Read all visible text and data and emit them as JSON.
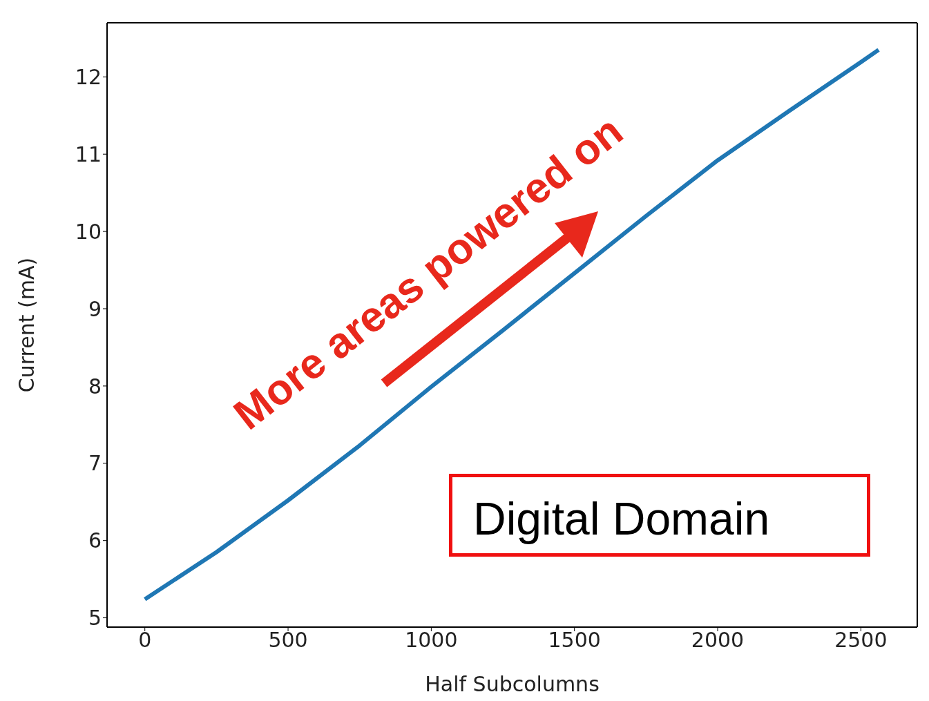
{
  "chart_data": {
    "type": "line",
    "xlabel": "Half Subcolumns",
    "ylabel": "Current (mA)",
    "x": [
      0,
      250,
      500,
      750,
      1000,
      1250,
      1500,
      1750,
      2000,
      2250,
      2500,
      2562
    ],
    "series": [
      {
        "color": "#1f77b4",
        "values": [
          5.24,
          5.85,
          6.52,
          7.23,
          7.99,
          8.72,
          9.46,
          10.2,
          10.92,
          11.56,
          12.19,
          12.35
        ]
      }
    ],
    "xlim": [
      -132,
      2697
    ],
    "ylim": [
      4.88,
      12.7
    ],
    "xticks": [
      0,
      500,
      1000,
      1500,
      2000,
      2500
    ],
    "yticks": [
      5,
      6,
      7,
      8,
      9,
      10,
      11,
      12
    ],
    "marker": "none",
    "line_style": "solid",
    "annotations": [
      "More areas powered on",
      "Digital Domain"
    ]
  }
}
